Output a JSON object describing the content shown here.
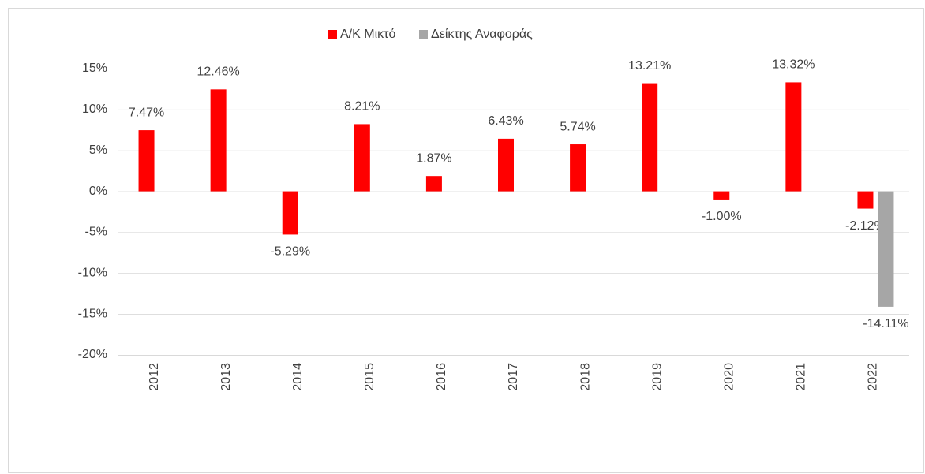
{
  "chart_data": {
    "type": "bar",
    "categories": [
      "2012",
      "2013",
      "2014",
      "2015",
      "2016",
      "2017",
      "2018",
      "2019",
      "2020",
      "2021",
      "2022"
    ],
    "series": [
      {
        "name": "Α/Κ Μικτό",
        "color": "#ff0000",
        "values": [
          7.47,
          12.46,
          -5.29,
          8.21,
          1.87,
          6.43,
          5.74,
          13.21,
          -1.0,
          13.32,
          -2.12
        ],
        "value_labels": [
          "7.47%",
          "12.46%",
          "-5.29%",
          "8.21%",
          "1.87%",
          "6.43%",
          "5.74%",
          "13.21%",
          "-1.00%",
          "13.32%",
          "-2.12%"
        ]
      },
      {
        "name": "Δείκτης Αναφοράς",
        "color": "#a6a6a6",
        "values": [
          null,
          null,
          null,
          null,
          null,
          null,
          null,
          null,
          null,
          null,
          -14.11
        ],
        "value_labels": [
          null,
          null,
          null,
          null,
          null,
          null,
          null,
          null,
          null,
          null,
          "-14.11%"
        ]
      }
    ],
    "ylim": [
      -20,
      15
    ],
    "yticks": [
      {
        "value": -20,
        "label": "-20%"
      },
      {
        "value": -15,
        "label": "-15%"
      },
      {
        "value": -10,
        "label": "-10%"
      },
      {
        "value": -5,
        "label": "-5%"
      },
      {
        "value": 0,
        "label": "0%"
      },
      {
        "value": 5,
        "label": "5%"
      },
      {
        "value": 10,
        "label": "10%"
      },
      {
        "value": 15,
        "label": "15%"
      }
    ],
    "grid": true,
    "legend": "top"
  }
}
